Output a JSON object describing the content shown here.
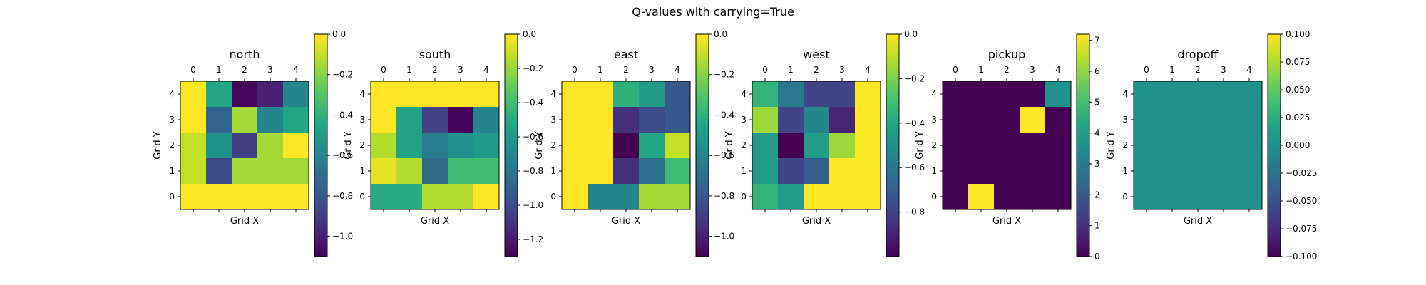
{
  "figure_title": "Q-values with carrying=True",
  "chart_data": [
    {
      "type": "heatmap",
      "title": "north",
      "xlabel": "Grid X",
      "ylabel": "Grid Y",
      "x_ticks": [
        0,
        1,
        2,
        3,
        4
      ],
      "y_ticks": [
        0,
        1,
        2,
        3,
        4
      ],
      "cmap": "viridis",
      "vmin": -1.1,
      "vmax": 0.0,
      "colorbar_ticks": [
        0.0,
        -0.2,
        -0.4,
        -0.6,
        -0.8,
        -1.0
      ],
      "colorbar_labels": [
        "0.0",
        "−0.2",
        "−0.4",
        "−0.6",
        "−0.8",
        "−1.0"
      ],
      "grid_rows_y4_to_y0": [
        [
          0.0,
          -0.45,
          -1.08,
          -1.0,
          -0.6
        ],
        [
          0.0,
          -0.75,
          -0.15,
          -0.6,
          -0.45
        ],
        [
          -0.1,
          -0.55,
          -0.9,
          -0.15,
          0.0
        ],
        [
          -0.1,
          -0.85,
          -0.15,
          -0.15,
          -0.15
        ],
        [
          0.0,
          0.0,
          0.0,
          0.0,
          0.0
        ]
      ]
    },
    {
      "type": "heatmap",
      "title": "south",
      "xlabel": "Grid X",
      "ylabel": "Grid Y",
      "x_ticks": [
        0,
        1,
        2,
        3,
        4
      ],
      "y_ticks": [
        0,
        1,
        2,
        3,
        4
      ],
      "cmap": "viridis",
      "vmin": -1.3,
      "vmax": 0.0,
      "colorbar_ticks": [
        0.0,
        -0.2,
        -0.4,
        -0.6,
        -0.8,
        -1.0,
        -1.2
      ],
      "colorbar_labels": [
        "0.0",
        "−0.2",
        "−0.4",
        "−0.6",
        "−0.8",
        "−1.0",
        "−1.2"
      ],
      "grid_rows_y4_to_y0": [
        [
          0.0,
          0.0,
          0.0,
          0.0,
          0.0
        ],
        [
          0.0,
          -0.55,
          -1.05,
          -1.28,
          -0.72
        ],
        [
          -0.15,
          -0.55,
          -0.75,
          -0.65,
          -0.6
        ],
        [
          -0.05,
          -0.15,
          -0.85,
          -0.4,
          -0.4
        ],
        [
          -0.5,
          -0.5,
          -0.15,
          -0.15,
          0.0
        ]
      ]
    },
    {
      "type": "heatmap",
      "title": "east",
      "xlabel": "Grid X",
      "ylabel": "Grid Y",
      "x_ticks": [
        0,
        1,
        2,
        3,
        4
      ],
      "y_ticks": [
        0,
        1,
        2,
        3,
        4
      ],
      "cmap": "viridis",
      "vmin": -1.1,
      "vmax": 0.0,
      "colorbar_ticks": [
        0.0,
        -0.2,
        -0.4,
        -0.6,
        -0.8,
        -1.0
      ],
      "colorbar_labels": [
        "0.0",
        "−0.2",
        "−0.4",
        "−0.6",
        "−0.8",
        "−1.0"
      ],
      "grid_rows_y4_to_y0": [
        [
          0.0,
          0.0,
          -0.4,
          -0.5,
          -0.8
        ],
        [
          0.0,
          0.0,
          -0.95,
          -0.85,
          -0.8
        ],
        [
          0.0,
          0.0,
          -1.1,
          -0.45,
          -0.1
        ],
        [
          0.0,
          0.0,
          -0.95,
          -0.7,
          -0.35
        ],
        [
          0.0,
          -0.6,
          -0.6,
          -0.15,
          -0.15
        ]
      ]
    },
    {
      "type": "heatmap",
      "title": "west",
      "xlabel": "Grid X",
      "ylabel": "Grid Y",
      "x_ticks": [
        0,
        1,
        2,
        3,
        4
      ],
      "y_ticks": [
        0,
        1,
        2,
        3,
        4
      ],
      "cmap": "viridis",
      "vmin": -1.0,
      "vmax": 0.0,
      "colorbar_ticks": [
        0.0,
        -0.2,
        -0.4,
        -0.6,
        -0.8
      ],
      "colorbar_labels": [
        "0.0",
        "−0.2",
        "−0.4",
        "−0.6",
        "−0.8"
      ],
      "grid_rows_y4_to_y0": [
        [
          -0.35,
          -0.6,
          -0.8,
          -0.8,
          0.0
        ],
        [
          -0.15,
          -0.8,
          -0.55,
          -0.9,
          0.0
        ],
        [
          -0.45,
          -1.0,
          -0.45,
          -0.15,
          0.0
        ],
        [
          -0.45,
          -0.8,
          -0.7,
          0.0,
          0.0
        ],
        [
          -0.35,
          -0.45,
          0.0,
          0.0,
          0.0
        ]
      ]
    },
    {
      "type": "heatmap",
      "title": "pickup",
      "xlabel": "Grid X",
      "ylabel": "Grid Y",
      "x_ticks": [
        0,
        1,
        2,
        3,
        4
      ],
      "y_ticks": [
        0,
        1,
        2,
        3,
        4
      ],
      "cmap": "viridis",
      "vmin": 0.0,
      "vmax": 7.2,
      "colorbar_ticks": [
        0,
        1,
        2,
        3,
        4,
        5,
        6,
        7
      ],
      "colorbar_labels": [
        "0",
        "1",
        "2",
        "3",
        "4",
        "5",
        "6",
        "7"
      ],
      "grid_rows_y4_to_y0": [
        [
          0.0,
          0.0,
          0.0,
          0.0,
          3.6
        ],
        [
          0.0,
          0.0,
          0.0,
          7.2,
          0.0
        ],
        [
          0.0,
          0.0,
          0.0,
          0.0,
          0.0
        ],
        [
          0.0,
          0.0,
          0.0,
          0.0,
          0.0
        ],
        [
          0.0,
          7.2,
          0.0,
          0.0,
          0.0
        ]
      ]
    },
    {
      "type": "heatmap",
      "title": "dropoff",
      "xlabel": "Grid X",
      "ylabel": "Grid Y",
      "x_ticks": [
        0,
        1,
        2,
        3,
        4
      ],
      "y_ticks": [
        0,
        1,
        2,
        3,
        4
      ],
      "cmap": "viridis",
      "vmin": -0.1,
      "vmax": 0.1,
      "colorbar_ticks": [
        0.1,
        0.075,
        0.05,
        0.025,
        0.0,
        -0.025,
        -0.05,
        -0.075,
        -0.1
      ],
      "colorbar_labels": [
        "0.100",
        "0.075",
        "0.050",
        "0.025",
        "0.000",
        "−0.025",
        "−0.050",
        "−0.075",
        "−0.100"
      ],
      "grid_rows_y4_to_y0": [
        [
          0.0,
          0.0,
          0.0,
          0.0,
          0.0
        ],
        [
          0.0,
          0.0,
          0.0,
          0.0,
          0.0
        ],
        [
          0.0,
          0.0,
          0.0,
          0.0,
          0.0
        ],
        [
          0.0,
          0.0,
          0.0,
          0.0,
          0.0
        ],
        [
          0.0,
          0.0,
          0.0,
          0.0,
          0.0
        ]
      ]
    }
  ]
}
